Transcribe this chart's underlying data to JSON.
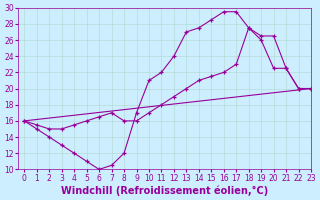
{
  "xlabel": "Windchill (Refroidissement éolien,°C)",
  "bg_color": "#cceeff",
  "line_color": "#990099",
  "marker": "+",
  "xlim": [
    -0.5,
    23
  ],
  "ylim": [
    10,
    30
  ],
  "xticks": [
    0,
    1,
    2,
    3,
    4,
    5,
    6,
    7,
    8,
    9,
    10,
    11,
    12,
    13,
    14,
    15,
    16,
    17,
    18,
    19,
    20,
    21,
    22,
    23
  ],
  "yticks": [
    10,
    12,
    14,
    16,
    18,
    20,
    22,
    24,
    26,
    28,
    30
  ],
  "line1_x": [
    0,
    1,
    2,
    3,
    4,
    5,
    6,
    7,
    8,
    9,
    10,
    11,
    12,
    13,
    14,
    15,
    16,
    17,
    18,
    19,
    20,
    21,
    22,
    23
  ],
  "line1_y": [
    16,
    15,
    14,
    13,
    12,
    11,
    10,
    10.5,
    12,
    17,
    21,
    22,
    24,
    27,
    27.5,
    28.5,
    29.5,
    29.5,
    27.5,
    26,
    22.5,
    22.5,
    20,
    20
  ],
  "line2_x": [
    0,
    1,
    2,
    3,
    4,
    5,
    6,
    7,
    8,
    9,
    10,
    11,
    12,
    13,
    14,
    15,
    16,
    17,
    18,
    19,
    20,
    21,
    22,
    23
  ],
  "line2_y": [
    16,
    15.5,
    15,
    15,
    15.5,
    16,
    16.5,
    17,
    16,
    16,
    17,
    18,
    19,
    20,
    21,
    21.5,
    22,
    23,
    27.5,
    26.5,
    26.5,
    22.5,
    20,
    20
  ],
  "line3_x": [
    0,
    23
  ],
  "line3_y": [
    16,
    20
  ],
  "grid_color": "#b0d8cc",
  "tick_fontsize": 5.5,
  "xlabel_fontsize": 7
}
